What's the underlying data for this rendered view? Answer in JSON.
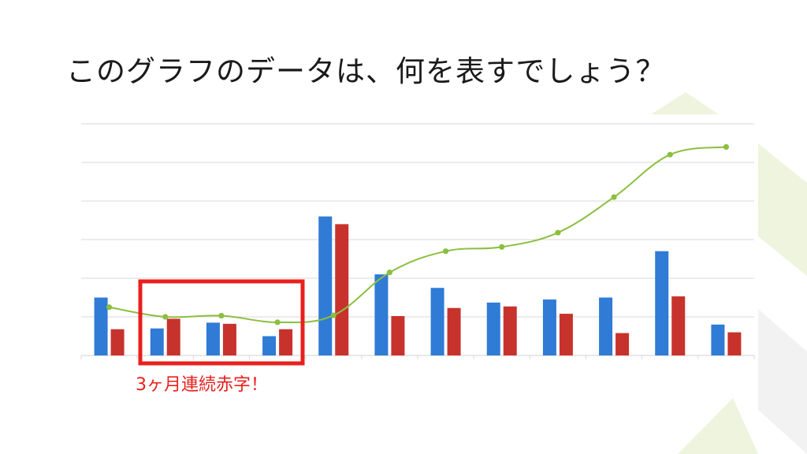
{
  "slide": {
    "title": "このグラフのデータは、何を表すでしょう？",
    "annotation": "3ヶ月連続赤字！"
  },
  "colors": {
    "series_blue": "#2f7bd5",
    "series_red": "#c7332c",
    "series_line": "#8cbf3f",
    "highlight_box": "#e8201e",
    "gridline": "#d9d9d9",
    "decor_green": "#eef4dd",
    "decor_gray": "#f2f2f2"
  },
  "chart_data": {
    "type": "bar",
    "categories": [
      "",
      "",
      "",
      "",
      "",
      "",
      "",
      "",
      "",
      "",
      "",
      ""
    ],
    "ylim": [
      0,
      6
    ],
    "grid": true,
    "legend": "none",
    "series": [
      {
        "type": "bar",
        "values": [
          1.5,
          0.7,
          0.85,
          0.5,
          3.6,
          2.1,
          1.75,
          1.37,
          1.45,
          1.5,
          2.7,
          0.8
        ]
      },
      {
        "type": "bar",
        "values": [
          0.68,
          0.95,
          0.82,
          0.68,
          3.4,
          1.02,
          1.23,
          1.27,
          1.08,
          0.58,
          1.53,
          0.6
        ]
      },
      {
        "type": "line",
        "values": [
          1.25,
          1.0,
          1.03,
          0.86,
          1.04,
          2.15,
          2.7,
          2.81,
          3.18,
          4.1,
          5.2,
          5.4
        ]
      }
    ],
    "annotations": [
      {
        "text": "3ヶ月連続赤字！",
        "target_categories": [
          1,
          2,
          3
        ]
      }
    ]
  }
}
